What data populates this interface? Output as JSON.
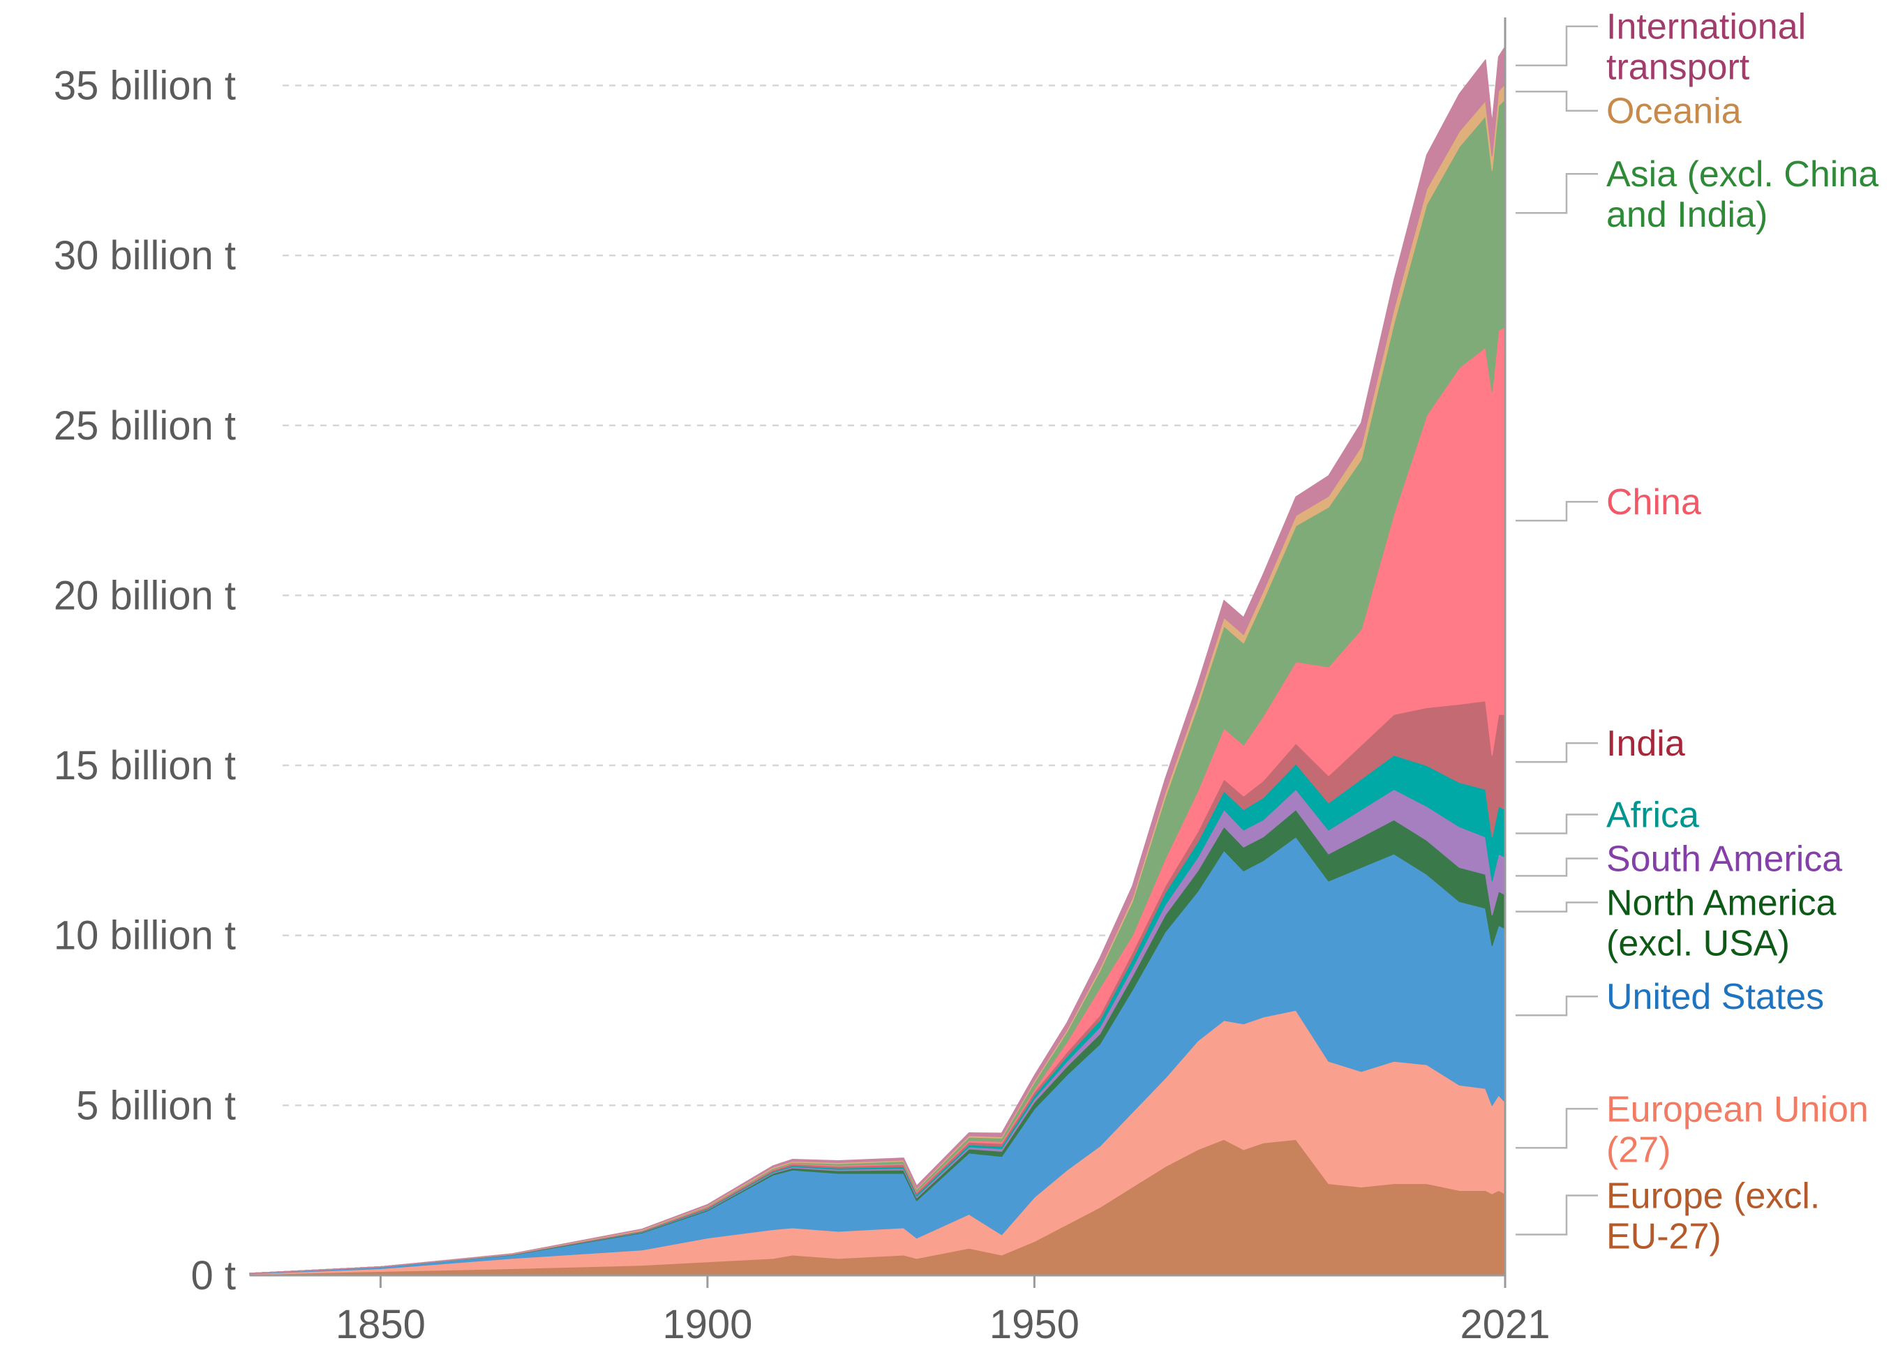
{
  "chart_data": {
    "type": "area",
    "stacked": true,
    "title": "",
    "xlabel": "",
    "ylabel": "",
    "unit": "billion t",
    "xlim": [
      1830,
      2022
    ],
    "ylim": [
      0,
      37
    ],
    "grid": true,
    "legend_placement": "right",
    "x_ticks": [
      {
        "value": 1850,
        "label": "1850"
      },
      {
        "value": 1900,
        "label": "1900"
      },
      {
        "value": 1950,
        "label": "1950"
      },
      {
        "value": 2021,
        "label": "2021"
      }
    ],
    "y_ticks": [
      {
        "value": 0,
        "label": "0 t"
      },
      {
        "value": 5,
        "label": "5 billion t"
      },
      {
        "value": 10,
        "label": "10 billion t"
      },
      {
        "value": 15,
        "label": "15 billion t"
      },
      {
        "value": 20,
        "label": "20 billion t"
      },
      {
        "value": 25,
        "label": "25 billion t"
      },
      {
        "value": 30,
        "label": "30 billion t"
      },
      {
        "value": 35,
        "label": "35 billion t"
      }
    ],
    "x": [
      1830,
      1850,
      1870,
      1890,
      1900,
      1910,
      1913,
      1920,
      1930,
      1932,
      1940,
      1945,
      1950,
      1955,
      1960,
      1965,
      1970,
      1975,
      1979,
      1982,
      1985,
      1990,
      1995,
      2000,
      2005,
      2010,
      2015,
      2019,
      2020,
      2021,
      2022
    ],
    "series": [
      {
        "name": "Europe (excl. EU-27)",
        "color": "#c8825c",
        "label_lines": [
          "Europe (excl.",
          "EU-27)"
        ],
        "label_color": "#b55a2a",
        "values": [
          0.03,
          0.12,
          0.2,
          0.3,
          0.4,
          0.5,
          0.6,
          0.5,
          0.6,
          0.5,
          0.8,
          0.6,
          1.0,
          1.5,
          2.0,
          2.6,
          3.2,
          3.7,
          4.0,
          3.7,
          3.9,
          4.0,
          2.7,
          2.6,
          2.7,
          2.7,
          2.5,
          2.5,
          2.4,
          2.5,
          2.4
        ]
      },
      {
        "name": "European Union (27)",
        "color": "#f9a08f",
        "label_lines": [
          "European Union",
          "(27)"
        ],
        "label_color": "#f27b63",
        "values": [
          0.02,
          0.08,
          0.3,
          0.45,
          0.7,
          0.85,
          0.8,
          0.8,
          0.8,
          0.6,
          1.0,
          0.6,
          1.3,
          1.6,
          1.8,
          2.2,
          2.6,
          3.2,
          3.5,
          3.7,
          3.7,
          3.8,
          3.6,
          3.4,
          3.6,
          3.5,
          3.1,
          3.0,
          2.6,
          2.8,
          2.7
        ]
      },
      {
        "name": "United States",
        "color": "#4b9ad4",
        "label_lines": [
          "United States"
        ],
        "label_color": "#1f74c0",
        "values": [
          0.01,
          0.05,
          0.1,
          0.5,
          0.8,
          1.6,
          1.7,
          1.7,
          1.6,
          1.1,
          1.8,
          2.3,
          2.6,
          2.8,
          3.0,
          3.6,
          4.3,
          4.4,
          5.0,
          4.5,
          4.6,
          5.1,
          5.3,
          6.0,
          6.1,
          5.6,
          5.4,
          5.3,
          4.7,
          5.0,
          5.1
        ]
      },
      {
        "name": "North America (excl. USA)",
        "color": "#3a7a4a",
        "label_lines": [
          "North America",
          "(excl. USA)"
        ],
        "label_color": "#0c5a16",
        "values": [
          0.0,
          0.0,
          0.01,
          0.02,
          0.03,
          0.05,
          0.06,
          0.08,
          0.1,
          0.08,
          0.12,
          0.15,
          0.2,
          0.25,
          0.3,
          0.4,
          0.5,
          0.6,
          0.7,
          0.7,
          0.7,
          0.8,
          0.8,
          0.9,
          1.0,
          1.0,
          1.0,
          1.0,
          0.9,
          1.0,
          1.0
        ]
      },
      {
        "name": "South America",
        "color": "#a57fc0",
        "label_lines": [
          "South America"
        ],
        "label_color": "#8440a8",
        "values": [
          0.0,
          0.0,
          0.0,
          0.01,
          0.02,
          0.03,
          0.04,
          0.04,
          0.05,
          0.05,
          0.06,
          0.08,
          0.1,
          0.15,
          0.2,
          0.25,
          0.3,
          0.4,
          0.5,
          0.5,
          0.5,
          0.6,
          0.7,
          0.8,
          0.9,
          1.0,
          1.2,
          1.1,
          1.0,
          1.1,
          1.1
        ]
      },
      {
        "name": "Africa",
        "color": "#00a9a6",
        "label_lines": [
          "Africa"
        ],
        "label_color": "#00958f",
        "values": [
          0.0,
          0.0,
          0.0,
          0.01,
          0.02,
          0.03,
          0.03,
          0.04,
          0.05,
          0.05,
          0.06,
          0.07,
          0.1,
          0.15,
          0.2,
          0.25,
          0.35,
          0.45,
          0.55,
          0.6,
          0.65,
          0.75,
          0.8,
          0.9,
          1.0,
          1.2,
          1.3,
          1.4,
          1.3,
          1.4,
          1.4
        ]
      },
      {
        "name": "India",
        "color": "#c46a73",
        "label_lines": [
          "India"
        ],
        "label_color": "#a5283a",
        "values": [
          0.0,
          0.0,
          0.01,
          0.02,
          0.03,
          0.04,
          0.05,
          0.05,
          0.06,
          0.06,
          0.08,
          0.08,
          0.1,
          0.12,
          0.15,
          0.2,
          0.2,
          0.3,
          0.35,
          0.4,
          0.5,
          0.6,
          0.8,
          1.0,
          1.2,
          1.7,
          2.3,
          2.6,
          2.4,
          2.7,
          2.8
        ]
      },
      {
        "name": "China",
        "color": "#ff7b88",
        "label_lines": [
          "China"
        ],
        "label_color": "#f25868",
        "values": [
          0.0,
          0.0,
          0.0,
          0.01,
          0.02,
          0.02,
          0.02,
          0.03,
          0.03,
          0.03,
          0.05,
          0.06,
          0.08,
          0.3,
          0.8,
          0.5,
          0.8,
          1.2,
          1.5,
          1.5,
          1.9,
          2.4,
          3.2,
          3.4,
          5.9,
          8.6,
          9.9,
          10.4,
          10.7,
          11.3,
          11.4
        ]
      },
      {
        "name": "Asia (excl. China and India)",
        "color": "#7eab77",
        "label_lines": [
          "Asia (excl. China",
          "and India)"
        ],
        "label_color": "#2f8a38",
        "values": [
          0.0,
          0.0,
          0.0,
          0.01,
          0.02,
          0.03,
          0.03,
          0.05,
          0.07,
          0.07,
          0.1,
          0.1,
          0.2,
          0.3,
          0.5,
          1.0,
          1.8,
          2.5,
          3.0,
          3.0,
          3.4,
          4.0,
          4.7,
          5.0,
          5.6,
          6.2,
          6.5,
          6.8,
          6.5,
          6.6,
          6.7
        ]
      },
      {
        "name": "Oceania",
        "color": "#e0b07c",
        "label_lines": [
          "Oceania"
        ],
        "label_color": "#c88a4a",
        "values": [
          0.0,
          0.0,
          0.01,
          0.02,
          0.02,
          0.03,
          0.03,
          0.03,
          0.03,
          0.03,
          0.04,
          0.04,
          0.05,
          0.06,
          0.08,
          0.1,
          0.15,
          0.2,
          0.25,
          0.25,
          0.27,
          0.3,
          0.32,
          0.38,
          0.42,
          0.45,
          0.45,
          0.45,
          0.43,
          0.44,
          0.44
        ]
      },
      {
        "name": "International transport",
        "color": "#c9839f",
        "label_lines": [
          "International",
          "transport"
        ],
        "label_color": "#a23c6b",
        "values": [
          0.0,
          0.0,
          0.0,
          0.01,
          0.02,
          0.04,
          0.05,
          0.05,
          0.06,
          0.06,
          0.08,
          0.1,
          0.15,
          0.2,
          0.3,
          0.35,
          0.4,
          0.45,
          0.5,
          0.5,
          0.5,
          0.55,
          0.6,
          0.7,
          0.85,
          1.0,
          1.1,
          1.2,
          0.95,
          1.0,
          1.1
        ]
      }
    ]
  }
}
